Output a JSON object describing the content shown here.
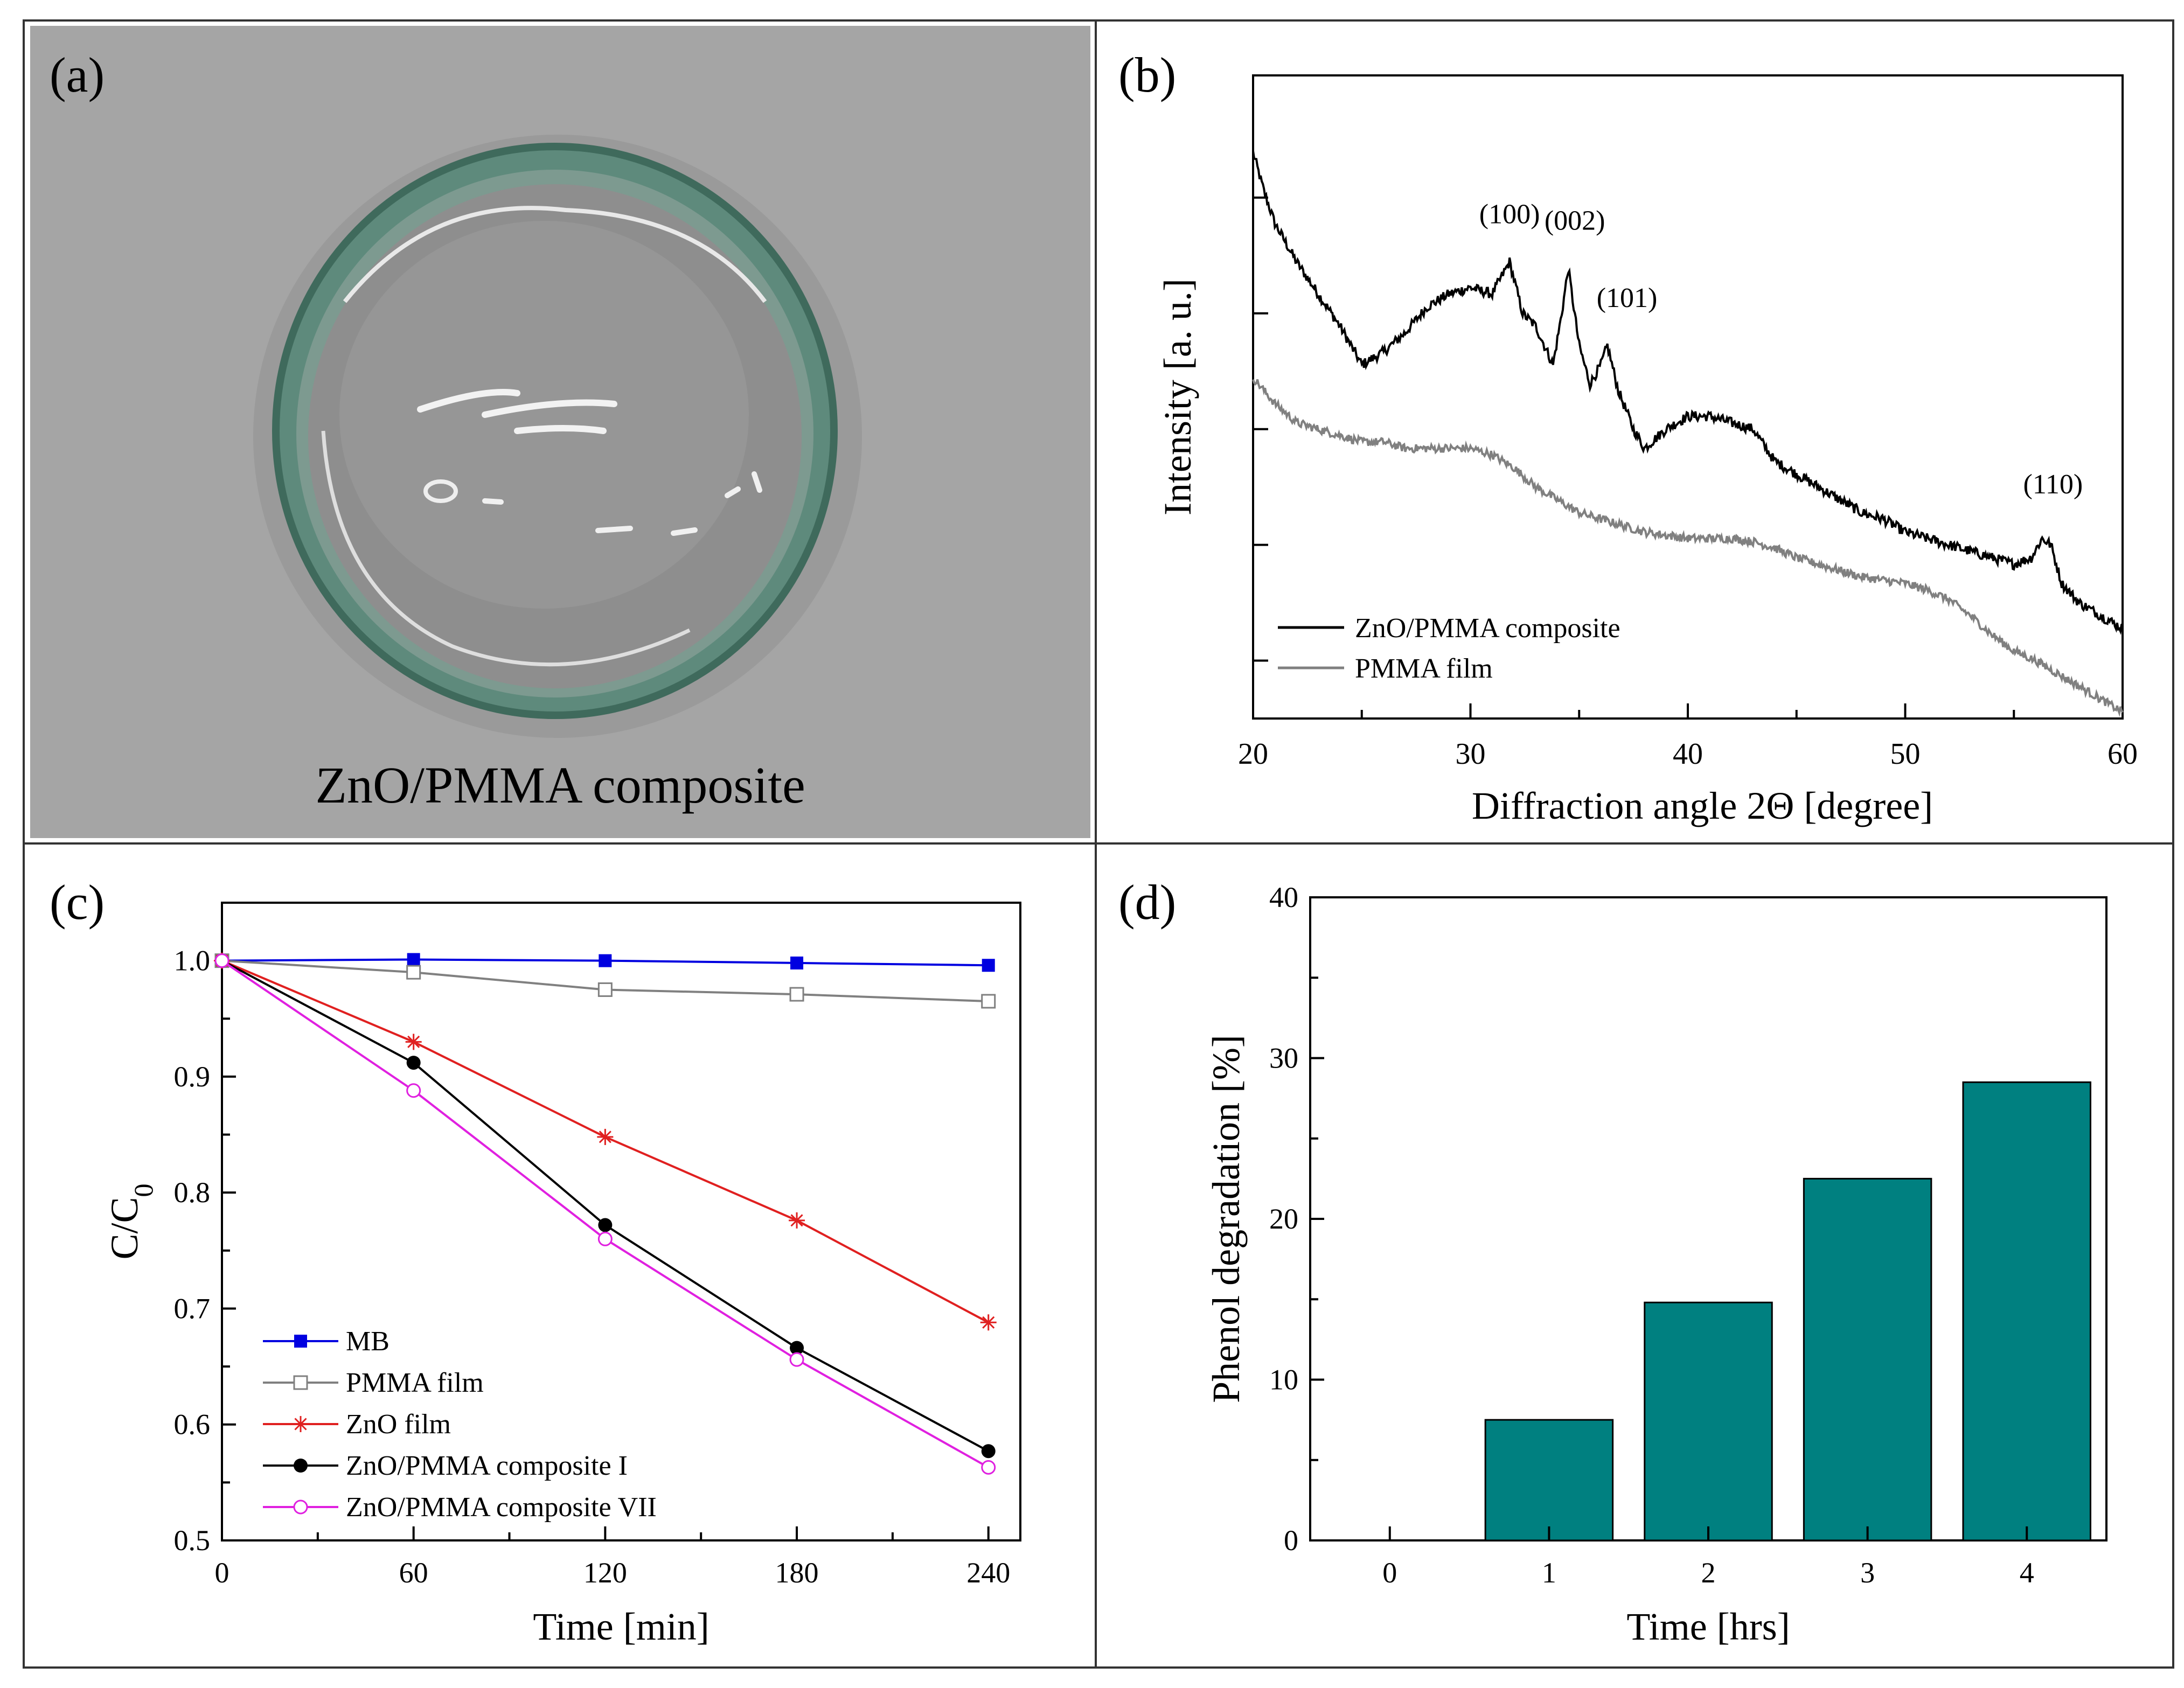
{
  "panels": {
    "a": {
      "label": "(a)",
      "caption": "ZnO/PMMA composite",
      "colors": {
        "background": "#a5a5a5",
        "dish_rim": "#4a7a6a",
        "film": "#8f8f8f"
      }
    },
    "b": {
      "label": "(b)"
    },
    "c": {
      "label": "(c)"
    },
    "d": {
      "label": "(d)"
    }
  },
  "chart_data": [
    {
      "id": "b",
      "type": "line",
      "title": "",
      "xlabel": "Diffraction angle 2Θ [degree]",
      "ylabel": "Intensity [a. u.]",
      "xlim": [
        20,
        60
      ],
      "ylim": [
        0,
        100
      ],
      "xticks": [
        20,
        30,
        40,
        50,
        60
      ],
      "xtick_labels": [
        "20",
        "30",
        "40",
        "50",
        "60"
      ],
      "yticks": [
        9,
        27,
        45,
        63,
        81
      ],
      "ytick_labels_shown": false,
      "series": [
        {
          "name": "ZnO/PMMA composite",
          "color": "#000000",
          "noise": 1.6,
          "x": [
            20,
            20.5,
            21,
            22,
            23,
            24,
            25,
            26,
            27,
            28,
            29,
            30,
            31,
            31.8,
            32.4,
            33,
            33.8,
            34.2,
            34.5,
            35,
            35.5,
            36,
            36.3,
            36.8,
            37.5,
            38,
            39,
            40,
            41,
            42,
            43,
            44,
            45,
            46,
            47,
            48,
            49,
            50,
            51,
            52,
            53,
            54,
            55,
            55.8,
            56.3,
            56.7,
            57.2,
            58,
            59,
            60
          ],
          "y": [
            88,
            82,
            77,
            71,
            66,
            61,
            55,
            57,
            60,
            64,
            66,
            67,
            66,
            71,
            63,
            61,
            55,
            63,
            70,
            58,
            52,
            55,
            58,
            51,
            45,
            42,
            45,
            47,
            47,
            46,
            45,
            40,
            38,
            36,
            34,
            32,
            31,
            29,
            28,
            27,
            26,
            25,
            24,
            25,
            28,
            27,
            21,
            18,
            16,
            14
          ]
        },
        {
          "name": "PMMA film",
          "color": "#808080",
          "noise": 1.3,
          "x": [
            20,
            21,
            22,
            23,
            24,
            25,
            26,
            27,
            28,
            29,
            30,
            31,
            32,
            33,
            34,
            35,
            36,
            37,
            38,
            39,
            40,
            41,
            42,
            43,
            44,
            45,
            46,
            47,
            48,
            49,
            50,
            51,
            52,
            53,
            54,
            55,
            56,
            57,
            58,
            59,
            60
          ],
          "y": [
            53,
            49,
            46,
            45,
            44,
            43,
            43,
            42,
            42,
            42,
            42,
            41,
            39,
            36,
            34,
            32,
            31,
            30,
            29,
            28.5,
            28,
            28,
            28,
            27.5,
            26.5,
            25,
            24,
            23,
            22,
            21.5,
            21,
            20,
            18.5,
            16,
            13,
            10.5,
            9,
            7,
            5,
            3,
            1
          ]
        }
      ],
      "annotations": [
        {
          "text": "(100)",
          "x": 31.8,
          "y": 77
        },
        {
          "text": "(002)",
          "x": 34.8,
          "y": 76
        },
        {
          "text": "(101)",
          "x": 37.2,
          "y": 64
        },
        {
          "text": "(110)",
          "x": 56.8,
          "y": 35
        }
      ],
      "legend": {
        "position": "bottom-left",
        "entries": [
          "ZnO/PMMA composite",
          "PMMA film"
        ]
      }
    },
    {
      "id": "c",
      "type": "line",
      "title": "",
      "xlabel": "Time [min]",
      "ylabel": "C/C",
      "ylabel_subscript": "0",
      "xlim": [
        0,
        250
      ],
      "ylim": [
        0.5,
        1.05
      ],
      "xticks": [
        0,
        60,
        120,
        180,
        240
      ],
      "xtick_labels": [
        "0",
        "60",
        "120",
        "180",
        "240"
      ],
      "yticks": [
        0.5,
        0.6,
        0.7,
        0.8,
        0.9,
        1.0
      ],
      "ytick_labels": [
        "0.5",
        "0.6",
        "0.7",
        "0.8",
        "0.9",
        "1.0"
      ],
      "x": [
        0,
        60,
        120,
        180,
        240
      ],
      "series": [
        {
          "name": "MB",
          "color": "#0000e0",
          "marker": "square-filled",
          "values": [
            1.0,
            1.001,
            1.0,
            0.998,
            0.996
          ]
        },
        {
          "name": "PMMA film",
          "color": "#808080",
          "marker": "square-open",
          "values": [
            1.0,
            0.99,
            0.975,
            0.971,
            0.965
          ]
        },
        {
          "name": "ZnO film",
          "color": "#e02020",
          "marker": "asterisk",
          "values": [
            1.0,
            0.93,
            0.848,
            0.776,
            0.688
          ]
        },
        {
          "name": "ZnO/PMMA composite I",
          "color": "#000000",
          "marker": "circle-filled",
          "values": [
            1.0,
            0.912,
            0.772,
            0.666,
            0.577
          ]
        },
        {
          "name": "ZnO/PMMA composite VII",
          "color": "#e020e0",
          "marker": "circle-open",
          "values": [
            1.0,
            0.888,
            0.76,
            0.656,
            0.563
          ]
        }
      ],
      "legend": {
        "position": "bottom-left"
      }
    },
    {
      "id": "d",
      "type": "bar",
      "title": "",
      "xlabel": "Time [hrs]",
      "ylabel": "Phenol degradation [%]",
      "categories": [
        "0",
        "1",
        "2",
        "3",
        "4"
      ],
      "values": [
        0,
        7.5,
        14.8,
        22.5,
        28.5
      ],
      "ylim": [
        0,
        40
      ],
      "yticks": [
        0,
        10,
        20,
        30,
        40
      ],
      "ytick_labels": [
        "0",
        "10",
        "20",
        "30",
        "40"
      ],
      "bar_color": "#008080"
    }
  ]
}
